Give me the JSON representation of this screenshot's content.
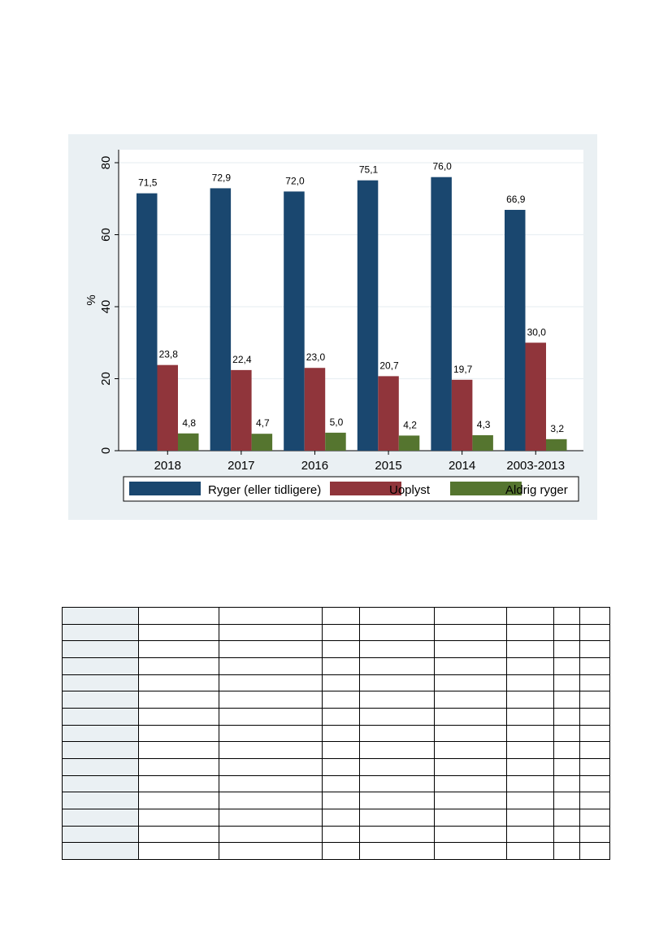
{
  "chart_data": {
    "type": "bar",
    "categories": [
      "2018",
      "2017",
      "2016",
      "2015",
      "2014",
      "2003-2013"
    ],
    "series": [
      {
        "name": "Ryger (eller tidligere)",
        "color": "#1a476f",
        "values": [
          71.5,
          72.9,
          72.0,
          75.1,
          76.0,
          66.9
        ],
        "labels": [
          "71,5",
          "72,9",
          "72,0",
          "75,1",
          "76,0",
          "66,9"
        ]
      },
      {
        "name": "Uoplyst",
        "color": "#90353b",
        "values": [
          23.8,
          22.4,
          23.0,
          20.7,
          19.7,
          30.0
        ],
        "labels": [
          "23,8",
          "22,4",
          "23,0",
          "20,7",
          "19,7",
          "30,0"
        ]
      },
      {
        "name": "Aldrig ryger",
        "color": "#55752f",
        "values": [
          4.8,
          4.7,
          5.0,
          4.2,
          4.3,
          3.2
        ],
        "labels": [
          "4,8",
          "4,7",
          "5,0",
          "4,2",
          "4,3",
          "3,2"
        ]
      }
    ],
    "ylabel": "%",
    "xlabel": "",
    "title": "",
    "ylim": [
      0,
      80
    ],
    "yticks": [
      0,
      20,
      40,
      60,
      80
    ],
    "grid": true,
    "legend_position": "bottom",
    "panel_color": "#eaf0f3"
  },
  "table": {
    "rows": 15,
    "columns": 9
  }
}
